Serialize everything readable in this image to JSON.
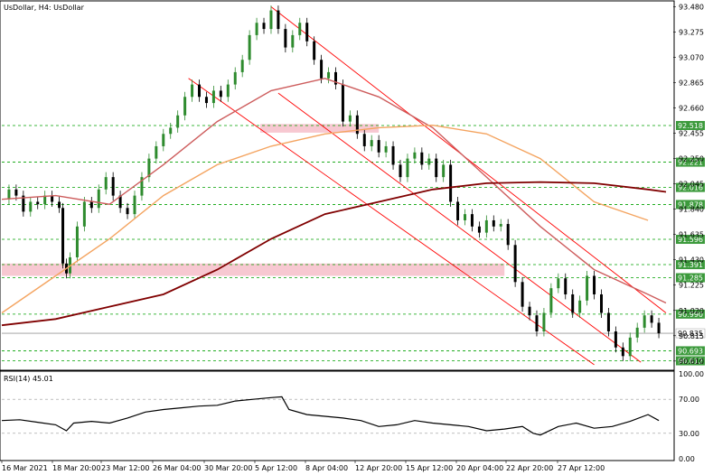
{
  "chart_title": "UsDollar, H4:  UsDollar",
  "rsi_label": "RSI(14) 45.01",
  "chart_data": {
    "type": "line",
    "price_axis": {
      "ylim": [
        90.55,
        93.52
      ],
      "ticks": [
        "93.480",
        "93.275",
        "93.070",
        "92.865",
        "92.660",
        "92.455",
        "92.250",
        "92.045",
        "91.840",
        "91.635",
        "91.430",
        "91.225",
        "91.020",
        "90.815",
        "90.610"
      ]
    },
    "rsi_axis": {
      "ylim": [
        0,
        100
      ],
      "ticks": [
        "100.00",
        "70.00",
        "30.00",
        "0.00"
      ],
      "levels": [
        70,
        30
      ]
    },
    "x_labels": [
      "16 Mar 2021",
      "18 Mar 20:00",
      "23 Mar 12:00",
      "26 Mar 04:00",
      "30 Mar 20:00",
      "5 Apr 12:00",
      "8 Apr 04:00",
      "12 Apr 20:00",
      "15 Apr 12:00",
      "20 Apr 04:00",
      "22 Apr 20:00",
      "27 Apr 12:00"
    ],
    "support_resistance_levels": [
      {
        "label": "92.518",
        "value": 92.518
      },
      {
        "label": "92.221",
        "value": 92.221
      },
      {
        "label": "92.016",
        "value": 92.016
      },
      {
        "label": "91.878",
        "value": 91.878
      },
      {
        "label": "91.596",
        "value": 91.596
      },
      {
        "label": "91.391",
        "value": 91.391
      },
      {
        "label": "91.285",
        "value": 91.285
      },
      {
        "label": "90.990",
        "value": 90.99
      },
      {
        "label": "90.693",
        "value": 90.693
      },
      {
        "label": "90.612",
        "value": 90.612
      }
    ],
    "current_price": {
      "label": "90.835",
      "value": 90.835
    },
    "zones": [
      {
        "from": 91.3,
        "to": 91.4
      },
      {
        "from": 92.46,
        "to": 92.53
      }
    ],
    "close_series": [
      [
        0,
        91.92
      ],
      [
        2,
        92.0
      ],
      [
        4,
        91.95
      ],
      [
        6,
        91.82
      ],
      [
        8,
        91.9
      ],
      [
        10,
        91.88
      ],
      [
        12,
        91.95
      ],
      [
        14,
        91.9
      ],
      [
        16,
        91.85
      ],
      [
        17,
        91.4
      ],
      [
        18,
        91.32
      ],
      [
        19,
        91.45
      ],
      [
        21,
        91.7
      ],
      [
        23,
        91.9
      ],
      [
        25,
        91.85
      ],
      [
        27,
        92.0
      ],
      [
        29,
        92.1
      ],
      [
        31,
        91.95
      ],
      [
        33,
        91.85
      ],
      [
        35,
        91.8
      ],
      [
        37,
        91.95
      ],
      [
        39,
        92.1
      ],
      [
        41,
        92.25
      ],
      [
        43,
        92.35
      ],
      [
        45,
        92.45
      ],
      [
        47,
        92.5
      ],
      [
        49,
        92.6
      ],
      [
        51,
        92.75
      ],
      [
        53,
        92.85
      ],
      [
        55,
        92.75
      ],
      [
        57,
        92.7
      ],
      [
        59,
        92.8
      ],
      [
        61,
        92.75
      ],
      [
        63,
        92.85
      ],
      [
        65,
        92.95
      ],
      [
        67,
        93.05
      ],
      [
        69,
        93.25
      ],
      [
        71,
        93.35
      ],
      [
        73,
        93.3
      ],
      [
        75,
        93.45
      ],
      [
        77,
        93.3
      ],
      [
        79,
        93.15
      ],
      [
        81,
        93.25
      ],
      [
        83,
        93.35
      ],
      [
        85,
        93.2
      ],
      [
        87,
        93.05
      ],
      [
        89,
        92.9
      ],
      [
        91,
        92.95
      ],
      [
        93,
        92.85
      ],
      [
        95,
        92.55
      ],
      [
        97,
        92.6
      ],
      [
        99,
        92.45
      ],
      [
        101,
        92.35
      ],
      [
        103,
        92.4
      ],
      [
        105,
        92.3
      ],
      [
        107,
        92.35
      ],
      [
        109,
        92.2
      ],
      [
        111,
        92.1
      ],
      [
        113,
        92.25
      ],
      [
        115,
        92.3
      ],
      [
        117,
        92.2
      ],
      [
        119,
        92.25
      ],
      [
        121,
        92.1
      ],
      [
        123,
        92.2
      ],
      [
        125,
        91.9
      ],
      [
        127,
        91.75
      ],
      [
        129,
        91.8
      ],
      [
        131,
        91.7
      ],
      [
        133,
        91.65
      ],
      [
        135,
        91.75
      ],
      [
        137,
        91.7
      ],
      [
        139,
        91.72
      ],
      [
        141,
        91.55
      ],
      [
        143,
        91.25
      ],
      [
        145,
        91.05
      ],
      [
        147,
        90.98
      ],
      [
        149,
        90.85
      ],
      [
        151,
        91.0
      ],
      [
        153,
        91.2
      ],
      [
        155,
        91.28
      ],
      [
        157,
        91.15
      ],
      [
        159,
        91.0
      ],
      [
        161,
        91.1
      ],
      [
        163,
        91.3
      ],
      [
        165,
        91.15
      ],
      [
        167,
        91.0
      ],
      [
        169,
        90.85
      ],
      [
        171,
        90.72
      ],
      [
        173,
        90.65
      ],
      [
        175,
        90.8
      ],
      [
        177,
        90.88
      ],
      [
        179,
        90.98
      ],
      [
        181,
        90.92
      ],
      [
        183,
        90.835
      ]
    ],
    "series": [
      {
        "name": "",
        "color": "#cd5c5c",
        "points": [
          [
            0,
            91.92
          ],
          [
            15,
            91.95
          ],
          [
            30,
            91.88
          ],
          [
            45,
            92.2
          ],
          [
            60,
            92.55
          ],
          [
            75,
            92.8
          ],
          [
            90,
            92.9
          ],
          [
            105,
            92.75
          ],
          [
            120,
            92.5
          ],
          [
            135,
            92.1
          ],
          [
            150,
            91.7
          ],
          [
            165,
            91.35
          ],
          [
            180,
            91.15
          ],
          [
            185,
            91.08
          ]
        ]
      },
      {
        "name": "",
        "color": "#f4a460",
        "points": [
          [
            0,
            91.0
          ],
          [
            15,
            91.3
          ],
          [
            30,
            91.6
          ],
          [
            45,
            91.95
          ],
          [
            60,
            92.2
          ],
          [
            75,
            92.35
          ],
          [
            90,
            92.45
          ],
          [
            105,
            92.5
          ],
          [
            120,
            92.52
          ],
          [
            135,
            92.45
          ],
          [
            150,
            92.25
          ],
          [
            165,
            91.9
          ],
          [
            180,
            91.75
          ]
        ]
      },
      {
        "name": "",
        "color": "#800000",
        "points": [
          [
            0,
            90.9
          ],
          [
            15,
            90.95
          ],
          [
            30,
            91.05
          ],
          [
            45,
            91.15
          ],
          [
            60,
            91.35
          ],
          [
            75,
            91.6
          ],
          [
            90,
            91.8
          ],
          [
            105,
            91.9
          ],
          [
            120,
            92.0
          ],
          [
            135,
            92.05
          ],
          [
            150,
            92.06
          ],
          [
            165,
            92.05
          ],
          [
            180,
            92.0
          ],
          [
            185,
            91.98
          ]
        ]
      }
    ],
    "channels": [
      {
        "color": "#ff0000",
        "lines": [
          [
            [
              75,
              93.48
            ],
            [
              185,
              91.0
            ]
          ],
          [
            [
              52,
              92.9
            ],
            [
              165,
              90.58
            ]
          ],
          [
            [
              77,
              92.78
            ],
            [
              178,
              90.6
            ]
          ]
        ]
      }
    ],
    "rsi_series": [
      [
        0,
        45
      ],
      [
        5,
        46
      ],
      [
        10,
        43
      ],
      [
        15,
        40
      ],
      [
        18,
        33
      ],
      [
        20,
        42
      ],
      [
        25,
        44
      ],
      [
        30,
        42
      ],
      [
        35,
        48
      ],
      [
        40,
        55
      ],
      [
        45,
        58
      ],
      [
        50,
        60
      ],
      [
        55,
        62
      ],
      [
        60,
        63
      ],
      [
        65,
        68
      ],
      [
        70,
        70
      ],
      [
        75,
        72
      ],
      [
        78,
        73
      ],
      [
        80,
        58
      ],
      [
        85,
        52
      ],
      [
        90,
        50
      ],
      [
        95,
        48
      ],
      [
        100,
        45
      ],
      [
        105,
        38
      ],
      [
        110,
        40
      ],
      [
        115,
        45
      ],
      [
        120,
        42
      ],
      [
        125,
        40
      ],
      [
        130,
        38
      ],
      [
        135,
        33
      ],
      [
        140,
        35
      ],
      [
        145,
        38
      ],
      [
        148,
        30
      ],
      [
        150,
        28
      ],
      [
        155,
        38
      ],
      [
        160,
        42
      ],
      [
        165,
        36
      ],
      [
        170,
        38
      ],
      [
        175,
        44
      ],
      [
        180,
        52
      ],
      [
        183,
        45.01
      ]
    ]
  }
}
